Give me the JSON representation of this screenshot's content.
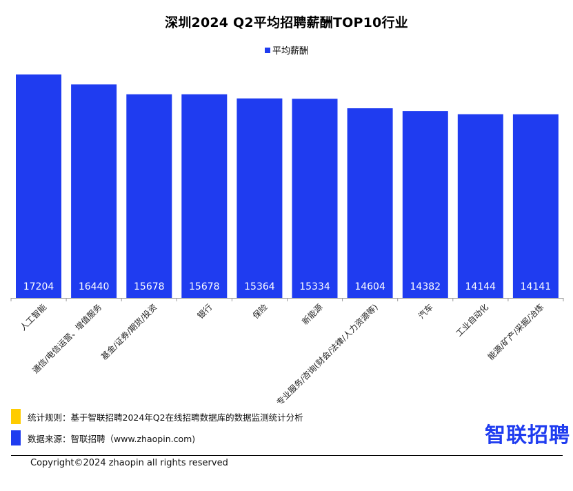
{
  "colors": {
    "bar": "#1f3cf0",
    "note_yellow": "#ffcc00",
    "note_blue": "#1f3cf0",
    "logo": "#1f3cf0"
  },
  "chart_data": {
    "type": "bar",
    "title": "深圳2024 Q2平均招聘薪酬TOP10行业",
    "xlabel": "",
    "ylabel": "",
    "ylim": [
      0,
      17500
    ],
    "grid": false,
    "legend_position": "top-center",
    "categories": [
      "人工智能",
      "通信/电信运营、增值服务",
      "基金/证券/期货/投资",
      "银行",
      "保险",
      "新能源",
      "专业服务/咨询(财会/法律/人力资源等)",
      "汽车",
      "工业自动化",
      "能源/矿产/采掘/冶炼"
    ],
    "series": [
      {
        "name": "平均薪酬",
        "values": [
          17204,
          16440,
          15678,
          15678,
          15364,
          15334,
          14604,
          14382,
          14144,
          14141
        ]
      }
    ]
  },
  "footer": {
    "rule_text": "统计规则：基于智联招聘2024年Q2在线招聘数据库的数据监测统计分析",
    "source_text": "数据来源：智联招聘（www.zhaopin.com)",
    "logo_text": "智联招聘",
    "copyright": "Copyright©2024 zhaopin all rights reserved"
  }
}
